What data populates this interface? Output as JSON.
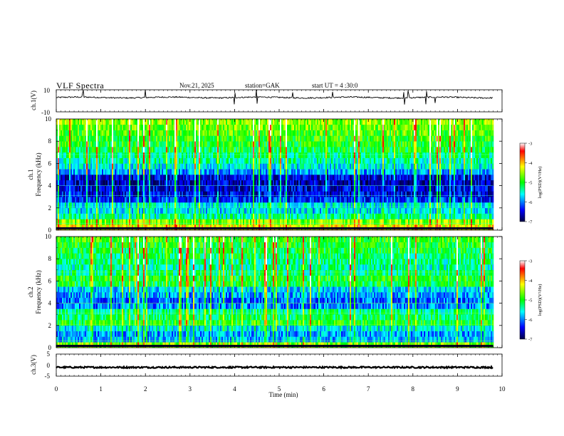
{
  "header": {
    "title": "VLF  Spectra",
    "date": "Nov.21, 2025",
    "station": "station=GAK",
    "start": "start  UT  =   4  :30:0"
  },
  "chart_data": [
    {
      "type": "line",
      "name": "ch1-waveform",
      "ylabel": "ch.1(V)",
      "ylim": [
        -10,
        10
      ],
      "y_ticks": [
        "10",
        "-10"
      ],
      "baseline": 3.0,
      "noise": 0.6,
      "spikes_min": [
        0.6,
        2.0,
        4.0,
        4.5,
        5.3,
        6.2,
        7.8,
        7.9,
        8.3,
        8.5
      ]
    },
    {
      "type": "heatmap",
      "name": "ch1-spectrogram",
      "ylabel": "ch.1\nFrequency  (kHz)",
      "ylim": [
        0,
        10
      ],
      "y_ticks": [
        "0",
        "2",
        "4",
        "6",
        "8",
        "10"
      ],
      "xlim": [
        0,
        10
      ],
      "data_end_min": 9.8,
      "freq_kHz": [
        0.25,
        0.75,
        1.25,
        1.75,
        2.25,
        2.75,
        3.25,
        3.75,
        4.25,
        4.75,
        5.25,
        5.75,
        6.25,
        6.75,
        7.25,
        7.75,
        8.25,
        8.75,
        9.25,
        9.75
      ],
      "log_psd_profile": [
        -4.2,
        -4.6,
        -5.4,
        -5.7,
        -5.6,
        -6.3,
        -6.5,
        -6.5,
        -6.6,
        -6.5,
        -5.9,
        -5.6,
        -5.4,
        -5.3,
        -5.1,
        -5.0,
        -4.9,
        -4.8,
        -4.7,
        -4.6
      ],
      "colorbar": {
        "label": "log(PSD)(V²/Hz)",
        "min": -7,
        "max": -3,
        "ticks": [
          "-3",
          "-4",
          "-5",
          "-6",
          "-7"
        ]
      }
    },
    {
      "type": "heatmap",
      "name": "ch2-spectrogram",
      "ylabel": "ch.2\nFrequency  (kHz)",
      "ylim": [
        0,
        10
      ],
      "y_ticks": [
        "0",
        "2",
        "4",
        "6",
        "8",
        "10"
      ],
      "xlim": [
        0,
        10
      ],
      "data_end_min": 9.8,
      "freq_kHz": [
        0.25,
        0.75,
        1.25,
        1.75,
        2.25,
        2.75,
        3.25,
        3.75,
        4.25,
        4.75,
        5.25,
        5.75,
        6.25,
        6.75,
        7.25,
        7.75,
        8.25,
        8.75,
        9.25,
        9.75
      ],
      "log_psd_profile": [
        -4.6,
        -5.8,
        -5.9,
        -5.6,
        -5.0,
        -5.2,
        -5.3,
        -6.0,
        -6.1,
        -5.9,
        -5.7,
        -5.1,
        -5.0,
        -5.3,
        -5.4,
        -5.3,
        -5.2,
        -5.1,
        -5.0,
        -4.9
      ],
      "colorbar": {
        "label": "log(PSD)(V²/Hz)",
        "min": -7,
        "max": -3,
        "ticks": [
          "-3",
          "-4",
          "-5",
          "-6",
          "-7"
        ]
      }
    },
    {
      "type": "line",
      "name": "ch3-waveform",
      "ylabel": "ch.3(V)",
      "ylim": [
        -5,
        5
      ],
      "y_ticks": [
        "5",
        "0",
        "-5"
      ],
      "baseline": -1.0,
      "noise": 0.35
    }
  ],
  "x_axis": {
    "label": "Time  (min)",
    "range": [
      0,
      10
    ],
    "ticks": [
      "0",
      "1",
      "2",
      "3",
      "4",
      "5",
      "6",
      "7",
      "8",
      "9",
      "10"
    ]
  },
  "colors": {
    "colormap": [
      "#000044",
      "#0000ff",
      "#00ffff",
      "#00ff00",
      "#ffff00",
      "#ff0000",
      "#ffffff"
    ],
    "trace": "#000000"
  }
}
